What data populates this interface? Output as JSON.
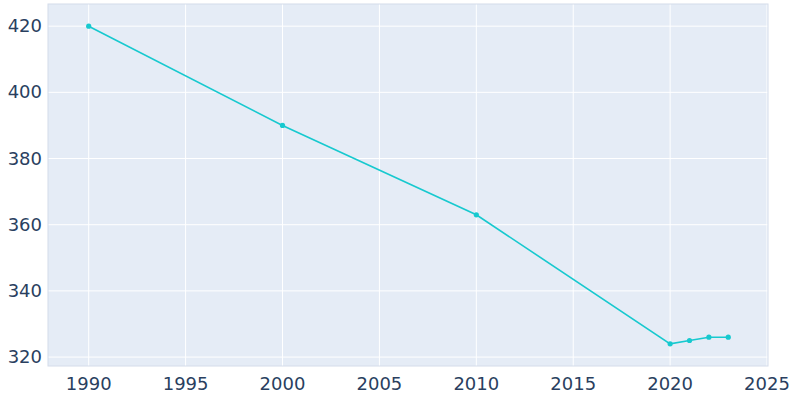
{
  "chart_data": {
    "type": "line",
    "x": [
      1990,
      2000,
      2010,
      2020,
      2021,
      2022,
      2023
    ],
    "values": [
      420,
      390,
      363,
      324,
      325,
      326,
      326
    ],
    "color": "#17c9cf",
    "marker": "circle",
    "xlim": [
      1987.9,
      2025.05
    ],
    "xticks": [
      1990,
      1995,
      2000,
      2005,
      2010,
      2015,
      2020,
      2025
    ],
    "ylim": [
      317.3,
      426.7
    ],
    "yticks": [
      320,
      340,
      360,
      380,
      400,
      420
    ],
    "grid": true
  }
}
